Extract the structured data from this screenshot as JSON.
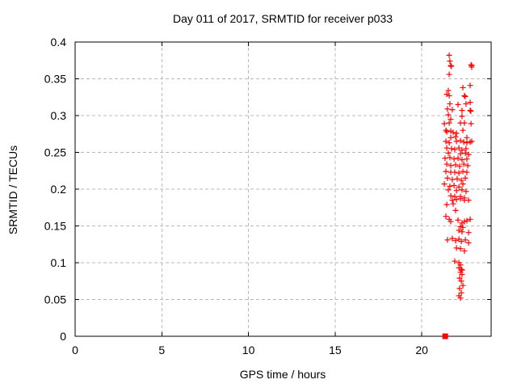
{
  "colors": {
    "marker": "#ff0000",
    "grid": "#b9b9b9",
    "axis": "#000000",
    "background": "#ffffff",
    "text": "#000000"
  },
  "chart_data": {
    "type": "scatter",
    "title": "Day 011 of 2017, SRMTID for receiver p033",
    "xlabel": "GPS time / hours",
    "ylabel": "SRMTID / TECUs",
    "xlim": [
      0,
      24
    ],
    "ylim": [
      0,
      0.4
    ],
    "xticks": [
      0,
      5,
      10,
      15,
      20
    ],
    "yticks": [
      0,
      0.05,
      0.1,
      0.15,
      0.2,
      0.25,
      0.3,
      0.35,
      0.4
    ],
    "grid": true,
    "legend_position": "none",
    "series": [
      {
        "name": "SRMTID",
        "marker": "plus",
        "color": "#ff0000",
        "points": [
          [
            21.58,
            0.382
          ],
          [
            21.62,
            0.374
          ],
          [
            21.67,
            0.368
          ],
          [
            21.7,
            0.367
          ],
          [
            22.84,
            0.369
          ],
          [
            22.88,
            0.368
          ],
          [
            22.88,
            0.366
          ],
          [
            21.58,
            0.356
          ],
          [
            22.37,
            0.338
          ],
          [
            22.79,
            0.341
          ],
          [
            21.53,
            0.334
          ],
          [
            21.44,
            0.329
          ],
          [
            21.58,
            0.327
          ],
          [
            22.46,
            0.327
          ],
          [
            22.5,
            0.326
          ],
          [
            21.62,
            0.316
          ],
          [
            22.09,
            0.315
          ],
          [
            22.55,
            0.316
          ],
          [
            22.79,
            0.318
          ],
          [
            21.48,
            0.309
          ],
          [
            21.76,
            0.308
          ],
          [
            22.32,
            0.307
          ],
          [
            22.79,
            0.307
          ],
          [
            22.83,
            0.306
          ],
          [
            21.53,
            0.301
          ],
          [
            22.32,
            0.299
          ],
          [
            21.67,
            0.295
          ],
          [
            21.3,
            0.289
          ],
          [
            21.58,
            0.29
          ],
          [
            22.23,
            0.29
          ],
          [
            22.46,
            0.29
          ],
          [
            22.84,
            0.289
          ],
          [
            21.39,
            0.28
          ],
          [
            21.67,
            0.279
          ],
          [
            22.0,
            0.276
          ],
          [
            22.6,
            0.27
          ],
          [
            21.44,
            0.278
          ],
          [
            21.81,
            0.277
          ],
          [
            22.37,
            0.28
          ],
          [
            21.67,
            0.27
          ],
          [
            21.95,
            0.271
          ],
          [
            21.39,
            0.265
          ],
          [
            21.58,
            0.263
          ],
          [
            22.0,
            0.265
          ],
          [
            22.23,
            0.266
          ],
          [
            22.42,
            0.264
          ],
          [
            22.6,
            0.263
          ],
          [
            22.79,
            0.264
          ],
          [
            22.88,
            0.265
          ],
          [
            21.44,
            0.256
          ],
          [
            21.72,
            0.255
          ],
          [
            21.9,
            0.254
          ],
          [
            22.14,
            0.256
          ],
          [
            22.32,
            0.253
          ],
          [
            22.55,
            0.255
          ],
          [
            21.53,
            0.249
          ],
          [
            22.23,
            0.248
          ],
          [
            22.51,
            0.249
          ],
          [
            22.7,
            0.247
          ],
          [
            21.34,
            0.242
          ],
          [
            21.62,
            0.243
          ],
          [
            21.86,
            0.241
          ],
          [
            22.09,
            0.242
          ],
          [
            22.32,
            0.24
          ],
          [
            22.6,
            0.241
          ],
          [
            21.44,
            0.234
          ],
          [
            21.67,
            0.232
          ],
          [
            21.95,
            0.233
          ],
          [
            22.18,
            0.231
          ],
          [
            22.42,
            0.234
          ],
          [
            22.65,
            0.232
          ],
          [
            21.39,
            0.224
          ],
          [
            21.67,
            0.223
          ],
          [
            21.9,
            0.223
          ],
          [
            22.14,
            0.222
          ],
          [
            22.37,
            0.224
          ],
          [
            22.6,
            0.223
          ],
          [
            21.48,
            0.215
          ],
          [
            21.76,
            0.213
          ],
          [
            22.04,
            0.214
          ],
          [
            22.28,
            0.212
          ],
          [
            22.51,
            0.215
          ],
          [
            21.3,
            0.207
          ],
          [
            21.62,
            0.204
          ],
          [
            21.86,
            0.205
          ],
          [
            22.14,
            0.203
          ],
          [
            22.37,
            0.207
          ],
          [
            21.53,
            0.199
          ],
          [
            22.0,
            0.198
          ],
          [
            22.32,
            0.199
          ],
          [
            22.55,
            0.197
          ],
          [
            21.67,
            0.191
          ],
          [
            21.9,
            0.19
          ],
          [
            22.23,
            0.19
          ],
          [
            22.46,
            0.188
          ],
          [
            21.76,
            0.185
          ],
          [
            22.0,
            0.186
          ],
          [
            22.23,
            0.187
          ],
          [
            22.46,
            0.185
          ],
          [
            22.7,
            0.185
          ],
          [
            21.44,
            0.179
          ],
          [
            21.81,
            0.18
          ],
          [
            21.95,
            0.171
          ],
          [
            21.39,
            0.163
          ],
          [
            21.58,
            0.159
          ],
          [
            21.67,
            0.156
          ],
          [
            22.09,
            0.158
          ],
          [
            22.32,
            0.154
          ],
          [
            22.46,
            0.156
          ],
          [
            22.6,
            0.157
          ],
          [
            22.79,
            0.159
          ],
          [
            22.23,
            0.149
          ],
          [
            22.37,
            0.148
          ],
          [
            22.14,
            0.144
          ],
          [
            22.32,
            0.142
          ],
          [
            22.7,
            0.141
          ],
          [
            21.48,
            0.131
          ],
          [
            21.76,
            0.133
          ],
          [
            21.95,
            0.13
          ],
          [
            22.14,
            0.132
          ],
          [
            22.28,
            0.129
          ],
          [
            22.51,
            0.131
          ],
          [
            22.7,
            0.127
          ],
          [
            22.0,
            0.12
          ],
          [
            22.23,
            0.119
          ],
          [
            22.46,
            0.116
          ],
          [
            21.9,
            0.102
          ],
          [
            22.14,
            0.1
          ],
          [
            22.23,
            0.097
          ],
          [
            22.14,
            0.093
          ],
          [
            22.28,
            0.091
          ],
          [
            22.32,
            0.09
          ],
          [
            22.23,
            0.087
          ],
          [
            22.32,
            0.084
          ],
          [
            22.18,
            0.079
          ],
          [
            22.28,
            0.075
          ],
          [
            22.37,
            0.069
          ],
          [
            22.18,
            0.065
          ],
          [
            22.28,
            0.059
          ],
          [
            22.14,
            0.055
          ],
          [
            22.23,
            0.052
          ]
        ]
      },
      {
        "name": "zero-level-marker",
        "marker": "filled-square",
        "color": "#ff0000",
        "points": [
          [
            21.35,
            0.0
          ]
        ]
      }
    ]
  }
}
